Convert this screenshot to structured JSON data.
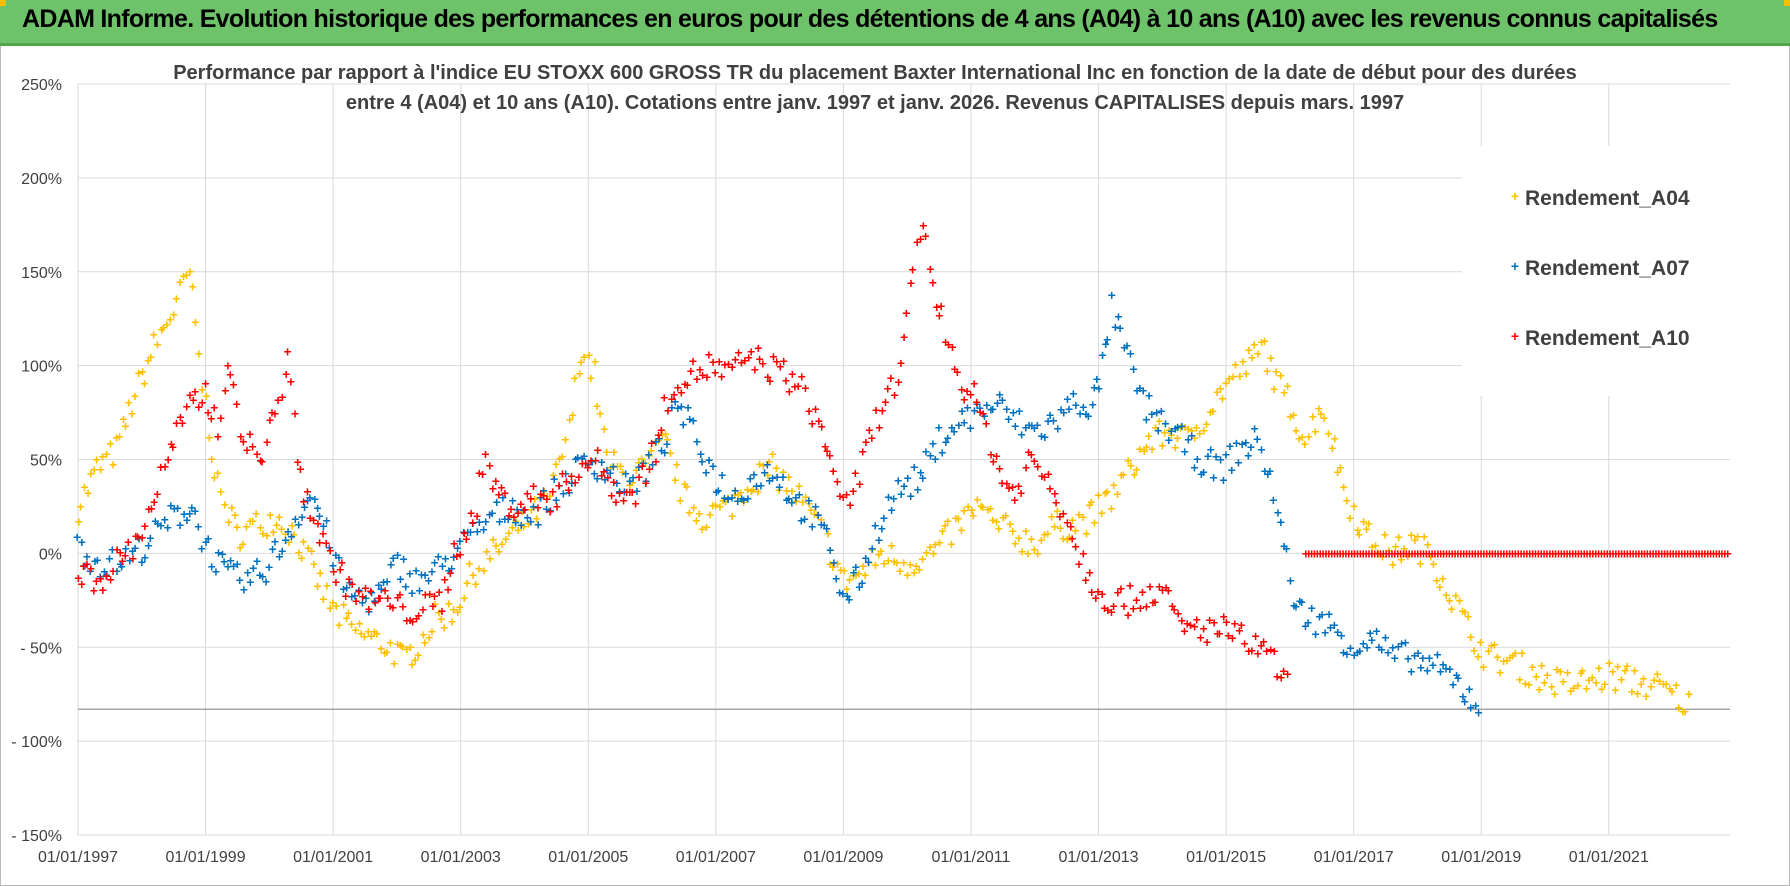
{
  "header": {
    "title": "ADAM Informe. Evolution historique des performances en euros pour des détentions de 4 ans (A04) à 10 ans (A10) avec les revenus connus capitalisés"
  },
  "colors": {
    "banner": "#6ec36a",
    "A04": "#ffc000",
    "A07": "#0070c0",
    "A10": "#ff0000",
    "grid": "#d9d9d9"
  },
  "chart_data": {
    "type": "scatter",
    "title_lines": [
      "Performance par rapport à l'indice EU STOXX 600 GROSS TR  du placement Baxter International Inc en fonction de la date de début pour des durées",
      "entre 4 (A04) et 10 ans (A10).  Cotations entre janv. 1997 et janv. 2026. Revenus CAPITALISES  depuis mars. 1997"
    ],
    "ylim": [
      -150,
      250
    ],
    "y_ticks": [
      {
        "value": 250,
        "label": "250%"
      },
      {
        "value": 200,
        "label": "200%"
      },
      {
        "value": 150,
        "label": "150%"
      },
      {
        "value": 100,
        "label": "100%"
      },
      {
        "value": 50,
        "label": "50%"
      },
      {
        "value": 0,
        "label": "0%"
      },
      {
        "value": -50,
        "label": "- 50%"
      },
      {
        "value": -100,
        "label": "- 100%"
      },
      {
        "value": -150,
        "label": "- 150%"
      }
    ],
    "x_range": [
      1997.0,
      2022.9
    ],
    "x_ticks": [
      {
        "value": 1997,
        "label": "01/01/1997"
      },
      {
        "value": 1999,
        "label": "01/01/1999"
      },
      {
        "value": 2001,
        "label": "01/01/2001"
      },
      {
        "value": 2003,
        "label": "01/01/2003"
      },
      {
        "value": 2005,
        "label": "01/01/2005"
      },
      {
        "value": 2007,
        "label": "01/01/2007"
      },
      {
        "value": 2009,
        "label": "01/01/2009"
      },
      {
        "value": 2011,
        "label": "01/01/2011"
      },
      {
        "value": 2013,
        "label": "01/01/2013"
      },
      {
        "value": 2015,
        "label": "01/01/2015"
      },
      {
        "value": 2017,
        "label": "01/01/2017"
      },
      {
        "value": 2019,
        "label": "01/01/2019"
      },
      {
        "value": 2021,
        "label": "01/01/2021"
      }
    ],
    "reference_line": -83,
    "legend": [
      {
        "name": "Rendement_A04",
        "color": "#ffc000"
      },
      {
        "name": "Rendement_A07",
        "color": "#0070c0"
      },
      {
        "name": "Rendement_A10",
        "color": "#ff0000"
      }
    ],
    "series": [
      {
        "name": "Rendement_A04",
        "color": "#ffc000",
        "points": [
          [
            1997.0,
            25
          ],
          [
            1997.3,
            45
          ],
          [
            1997.6,
            55
          ],
          [
            1997.9,
            85
          ],
          [
            1998.2,
            110
          ],
          [
            1998.5,
            130
          ],
          [
            1998.75,
            150
          ],
          [
            1998.95,
            90
          ],
          [
            1999.2,
            35
          ],
          [
            1999.5,
            10
          ],
          [
            1999.8,
            15
          ],
          [
            2000.1,
            20
          ],
          [
            2000.4,
            10
          ],
          [
            2000.7,
            -10
          ],
          [
            2001.0,
            -30
          ],
          [
            2001.3,
            -40
          ],
          [
            2001.6,
            -45
          ],
          [
            2001.9,
            -50
          ],
          [
            2002.1,
            -57
          ],
          [
            2002.3,
            -50
          ],
          [
            2002.6,
            -35
          ],
          [
            2002.9,
            -30
          ],
          [
            2003.2,
            -10
          ],
          [
            2003.5,
            0
          ],
          [
            2003.8,
            10
          ],
          [
            2004.1,
            20
          ],
          [
            2004.4,
            30
          ],
          [
            2004.7,
            65
          ],
          [
            2004.9,
            110
          ],
          [
            2005.1,
            95
          ],
          [
            2005.3,
            50
          ],
          [
            2005.6,
            40
          ],
          [
            2005.9,
            45
          ],
          [
            2006.2,
            60
          ],
          [
            2006.5,
            30
          ],
          [
            2006.8,
            20
          ],
          [
            2007.2,
            25
          ],
          [
            2007.6,
            40
          ],
          [
            2007.9,
            45
          ],
          [
            2008.3,
            30
          ],
          [
            2008.7,
            10
          ],
          [
            2009.0,
            -15
          ],
          [
            2009.3,
            -10
          ],
          [
            2009.6,
            0
          ],
          [
            2010.0,
            -5
          ],
          [
            2010.4,
            0
          ],
          [
            2010.8,
            15
          ],
          [
            2011.1,
            25
          ],
          [
            2011.4,
            15
          ],
          [
            2011.7,
            10
          ],
          [
            2012.0,
            5
          ],
          [
            2012.3,
            15
          ],
          [
            2012.6,
            15
          ],
          [
            2012.9,
            20
          ],
          [
            2013.2,
            30
          ],
          [
            2013.5,
            45
          ],
          [
            2013.8,
            60
          ],
          [
            2014.1,
            65
          ],
          [
            2014.4,
            60
          ],
          [
            2014.7,
            75
          ],
          [
            2015.0,
            90
          ],
          [
            2015.3,
            100
          ],
          [
            2015.6,
            110
          ],
          [
            2015.8,
            90
          ],
          [
            2016.0,
            80
          ],
          [
            2016.25,
            60
          ],
          [
            2016.5,
            80
          ],
          [
            2016.7,
            55
          ],
          [
            2016.9,
            30
          ],
          [
            2017.2,
            10
          ],
          [
            2017.6,
            0
          ],
          [
            2017.9,
            5
          ],
          [
            2018.2,
            0
          ],
          [
            2018.5,
            -20
          ],
          [
            2018.8,
            -40
          ],
          [
            2019.1,
            -55
          ],
          [
            2019.5,
            -58
          ],
          [
            2019.9,
            -65
          ],
          [
            2020.3,
            -70
          ],
          [
            2020.7,
            -68
          ],
          [
            2021.0,
            -65
          ],
          [
            2021.4,
            -68
          ],
          [
            2021.7,
            -70
          ],
          [
            2022.0,
            -75
          ],
          [
            2022.3,
            -82
          ]
        ]
      },
      {
        "name": "Rendement_A07",
        "color": "#0070c0",
        "points": [
          [
            1997.0,
            5
          ],
          [
            1997.3,
            -5
          ],
          [
            1997.6,
            -5
          ],
          [
            1997.9,
            0
          ],
          [
            1998.2,
            10
          ],
          [
            1998.5,
            20
          ],
          [
            1998.8,
            25
          ],
          [
            1999.0,
            5
          ],
          [
            1999.3,
            -10
          ],
          [
            1999.6,
            -15
          ],
          [
            1999.9,
            -10
          ],
          [
            2000.2,
            5
          ],
          [
            2000.5,
            25
          ],
          [
            2000.7,
            30
          ],
          [
            2000.9,
            10
          ],
          [
            2001.2,
            -20
          ],
          [
            2001.5,
            -25
          ],
          [
            2001.8,
            -20
          ],
          [
            2002.0,
            -5
          ],
          [
            2002.3,
            -15
          ],
          [
            2002.6,
            -10
          ],
          [
            2002.9,
            0
          ],
          [
            2003.2,
            10
          ],
          [
            2003.5,
            20
          ],
          [
            2003.8,
            25
          ],
          [
            2004.1,
            20
          ],
          [
            2004.4,
            30
          ],
          [
            2004.7,
            40
          ],
          [
            2005.0,
            50
          ],
          [
            2005.3,
            45
          ],
          [
            2005.6,
            35
          ],
          [
            2005.9,
            45
          ],
          [
            2006.2,
            60
          ],
          [
            2006.4,
            80
          ],
          [
            2006.7,
            60
          ],
          [
            2007.0,
            40
          ],
          [
            2007.3,
            30
          ],
          [
            2007.6,
            40
          ],
          [
            2007.9,
            45
          ],
          [
            2008.2,
            30
          ],
          [
            2008.5,
            20
          ],
          [
            2008.8,
            5
          ],
          [
            2009.0,
            -25
          ],
          [
            2009.3,
            -10
          ],
          [
            2009.6,
            20
          ],
          [
            2009.9,
            35
          ],
          [
            2010.2,
            40
          ],
          [
            2010.5,
            60
          ],
          [
            2010.8,
            70
          ],
          [
            2011.1,
            75
          ],
          [
            2011.4,
            80
          ],
          [
            2011.7,
            70
          ],
          [
            2012.0,
            65
          ],
          [
            2012.3,
            70
          ],
          [
            2012.6,
            80
          ],
          [
            2012.9,
            80
          ],
          [
            2013.0,
            90
          ],
          [
            2013.2,
            130
          ],
          [
            2013.4,
            110
          ],
          [
            2013.7,
            80
          ],
          [
            2014.0,
            70
          ],
          [
            2014.3,
            60
          ],
          [
            2014.6,
            50
          ],
          [
            2014.9,
            45
          ],
          [
            2015.2,
            55
          ],
          [
            2015.5,
            60
          ],
          [
            2015.7,
            40
          ],
          [
            2015.9,
            5
          ],
          [
            2016.1,
            -30
          ],
          [
            2016.4,
            -35
          ],
          [
            2016.7,
            -40
          ],
          [
            2017.0,
            -50
          ],
          [
            2017.3,
            -45
          ],
          [
            2017.6,
            -55
          ],
          [
            2017.9,
            -55
          ],
          [
            2018.2,
            -60
          ],
          [
            2018.5,
            -65
          ],
          [
            2018.8,
            -75
          ],
          [
            2019.0,
            -83
          ]
        ]
      },
      {
        "name": "Rendement_A10",
        "color": "#ff0000",
        "points": [
          [
            1997.0,
            -10
          ],
          [
            1997.3,
            -15
          ],
          [
            1997.6,
            -5
          ],
          [
            1997.9,
            5
          ],
          [
            1998.2,
            30
          ],
          [
            1998.5,
            60
          ],
          [
            1998.8,
            80
          ],
          [
            1999.0,
            85
          ],
          [
            1999.2,
            70
          ],
          [
            1999.4,
            100
          ],
          [
            1999.6,
            60
          ],
          [
            1999.9,
            50
          ],
          [
            2000.1,
            80
          ],
          [
            2000.3,
            100
          ],
          [
            2000.5,
            40
          ],
          [
            2000.7,
            20
          ],
          [
            2000.9,
            0
          ],
          [
            2001.2,
            -15
          ],
          [
            2001.5,
            -25
          ],
          [
            2001.8,
            -25
          ],
          [
            2002.1,
            -30
          ],
          [
            2002.4,
            -30
          ],
          [
            2002.7,
            -25
          ],
          [
            2002.9,
            0
          ],
          [
            2003.2,
            20
          ],
          [
            2003.4,
            50
          ],
          [
            2003.6,
            30
          ],
          [
            2003.9,
            25
          ],
          [
            2004.2,
            30
          ],
          [
            2004.5,
            30
          ],
          [
            2004.8,
            45
          ],
          [
            2005.1,
            50
          ],
          [
            2005.4,
            35
          ],
          [
            2005.7,
            30
          ],
          [
            2005.9,
            45
          ],
          [
            2006.1,
            60
          ],
          [
            2006.3,
            90
          ],
          [
            2006.6,
            95
          ],
          [
            2006.9,
            100
          ],
          [
            2007.2,
            95
          ],
          [
            2007.5,
            105
          ],
          [
            2007.8,
            100
          ],
          [
            2008.1,
            95
          ],
          [
            2008.4,
            85
          ],
          [
            2008.7,
            60
          ],
          [
            2008.9,
            40
          ],
          [
            2009.1,
            20
          ],
          [
            2009.3,
            50
          ],
          [
            2009.6,
            80
          ],
          [
            2009.9,
            95
          ],
          [
            2010.1,
            150
          ],
          [
            2010.25,
            180
          ],
          [
            2010.4,
            140
          ],
          [
            2010.6,
            120
          ],
          [
            2010.8,
            95
          ],
          [
            2011.1,
            80
          ],
          [
            2011.3,
            60
          ],
          [
            2011.5,
            40
          ],
          [
            2011.7,
            30
          ],
          [
            2011.9,
            50
          ],
          [
            2012.2,
            40
          ],
          [
            2012.5,
            20
          ],
          [
            2012.7,
            0
          ],
          [
            2012.9,
            -15
          ],
          [
            2013.2,
            -25
          ],
          [
            2013.5,
            -25
          ],
          [
            2013.8,
            -20
          ],
          [
            2014.0,
            -20
          ],
          [
            2014.3,
            -40
          ],
          [
            2014.6,
            -40
          ],
          [
            2014.9,
            -40
          ],
          [
            2015.2,
            -45
          ],
          [
            2015.5,
            -50
          ],
          [
            2015.8,
            -60
          ],
          [
            2016.0,
            -75
          ]
        ]
      }
    ],
    "flat_segment": {
      "series": "Rendement_A10",
      "x_start": 2016.25,
      "x_end": 2022.9,
      "value": 0
    }
  }
}
